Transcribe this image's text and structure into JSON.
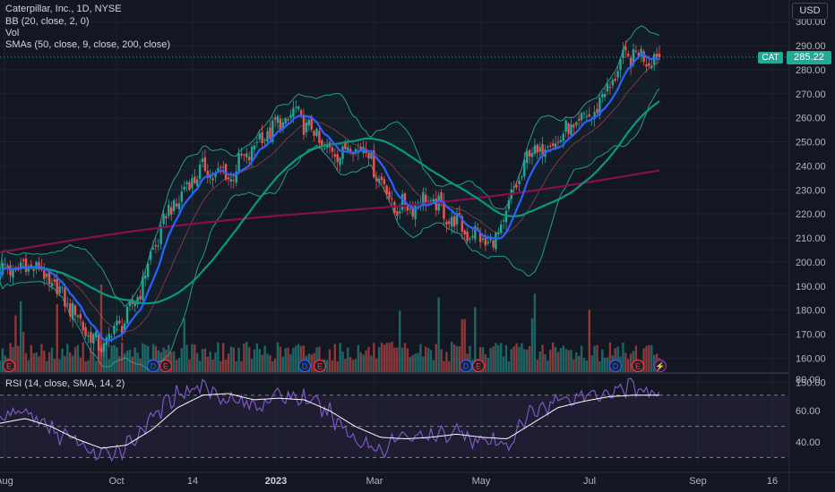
{
  "header": {
    "title": "Caterpillar, Inc., 1D, NYSE",
    "bb_label": "BB (20, close, 2, 0)",
    "vol_label": "Vol",
    "sma_label": "SMAs (50, close, 9, close, 200, close)",
    "currency": "USD",
    "symbol_tag": "CAT",
    "last_price": "285.22"
  },
  "rsi_panel": {
    "label": "RSI (14, close, SMA, 14, 2)"
  },
  "colors": {
    "background": "#131722",
    "up": "#26a69a",
    "down": "#ef5350",
    "sma9": "#2962ff",
    "sma50": "#089981",
    "sma200": "#880e4f",
    "bollinger": "#22ab94",
    "rsi": "#7e57c2",
    "rsi_ma": "#ffffff"
  },
  "event_markers": {
    "types": {
      "E": "earnings",
      "D": "dividend",
      "bolt": "split/event"
    },
    "items": [
      {
        "date": "Aug",
        "label": "E"
      },
      {
        "date": "Oct 20",
        "label": "D"
      },
      {
        "date": "Oct 27",
        "label": "E"
      },
      {
        "date": "Jan 19",
        "label": "D"
      },
      {
        "date": "Feb 1",
        "label": "E"
      },
      {
        "date": "Apr 20",
        "label": "D"
      },
      {
        "date": "Apr 27",
        "label": "E"
      },
      {
        "date": "Jul 20",
        "label": "D"
      },
      {
        "date": "Aug 1",
        "label": "E"
      },
      {
        "date": "Aug 8",
        "label": "⚡"
      }
    ]
  },
  "chart_data": [
    {
      "type": "candlestick",
      "symbol": "CAT",
      "interval": "1D",
      "x_ticks": [
        "Aug",
        "Oct",
        "14",
        "2023",
        "Mar",
        "May",
        "Jul",
        "Sep",
        "16"
      ],
      "y_ticks": [
        150.0,
        160.0,
        170.0,
        180.0,
        190.0,
        200.0,
        210.0,
        220.0,
        230.0,
        240.0,
        250.0,
        260.0,
        270.0,
        280.0,
        290.0,
        300.0
      ],
      "ylim": [
        146,
        306
      ],
      "last_price": 285.22,
      "closes_approx": [
        {
          "date": "Aug start",
          "close": 196
        },
        {
          "date": "Aug mid",
          "close": 199
        },
        {
          "date": "Sep start",
          "close": 184
        },
        {
          "date": "Sep end",
          "close": 164
        },
        {
          "date": "Oct mid",
          "close": 180
        },
        {
          "date": "Nov start",
          "close": 218
        },
        {
          "date": "Nov end",
          "close": 238
        },
        {
          "date": "Dec mid",
          "close": 236
        },
        {
          "date": "Jan mid",
          "close": 253
        },
        {
          "date": "Feb start",
          "close": 262
        },
        {
          "date": "Feb end",
          "close": 245
        },
        {
          "date": "Mar start",
          "close": 249
        },
        {
          "date": "Mar mid",
          "close": 222
        },
        {
          "date": "Apr start",
          "close": 226
        },
        {
          "date": "May start",
          "close": 214
        },
        {
          "date": "May end",
          "close": 207
        },
        {
          "date": "Jun mid",
          "close": 244
        },
        {
          "date": "Jul start",
          "close": 252
        },
        {
          "date": "Jul mid",
          "close": 262
        },
        {
          "date": "Jul end",
          "close": 286
        },
        {
          "date": "Aug start",
          "close": 285
        }
      ],
      "series": [
        {
          "name": "SMA 9",
          "color": "#2962ff"
        },
        {
          "name": "SMA 50",
          "color": "#089981"
        },
        {
          "name": "SMA 200",
          "color": "#880e4f"
        },
        {
          "name": "BB (20, close, 2, 0)",
          "color": "#22ab94"
        }
      ],
      "grid": true
    },
    {
      "type": "line",
      "name": "RSI (14, close, SMA, 14, 2)",
      "y_ticks": [
        40.0,
        60.0,
        80.0
      ],
      "ylim": [
        24,
        83
      ],
      "reference_lines": [
        70,
        50,
        30
      ],
      "series": [
        {
          "name": "RSI",
          "values": [
            55,
            60,
            48,
            40,
            30,
            38,
            55,
            72,
            76,
            68,
            63,
            70,
            68,
            58,
            42,
            35,
            45,
            42,
            48,
            40,
            38,
            60,
            67,
            70,
            73,
            76,
            68
          ]
        },
        {
          "name": "RSI SMA",
          "values": [
            52,
            55,
            50,
            42,
            36,
            38,
            48,
            62,
            70,
            71,
            67,
            68,
            67,
            60,
            50,
            43,
            42,
            43,
            45,
            43,
            42,
            52,
            62,
            66,
            69,
            70,
            70
          ]
        }
      ]
    }
  ]
}
